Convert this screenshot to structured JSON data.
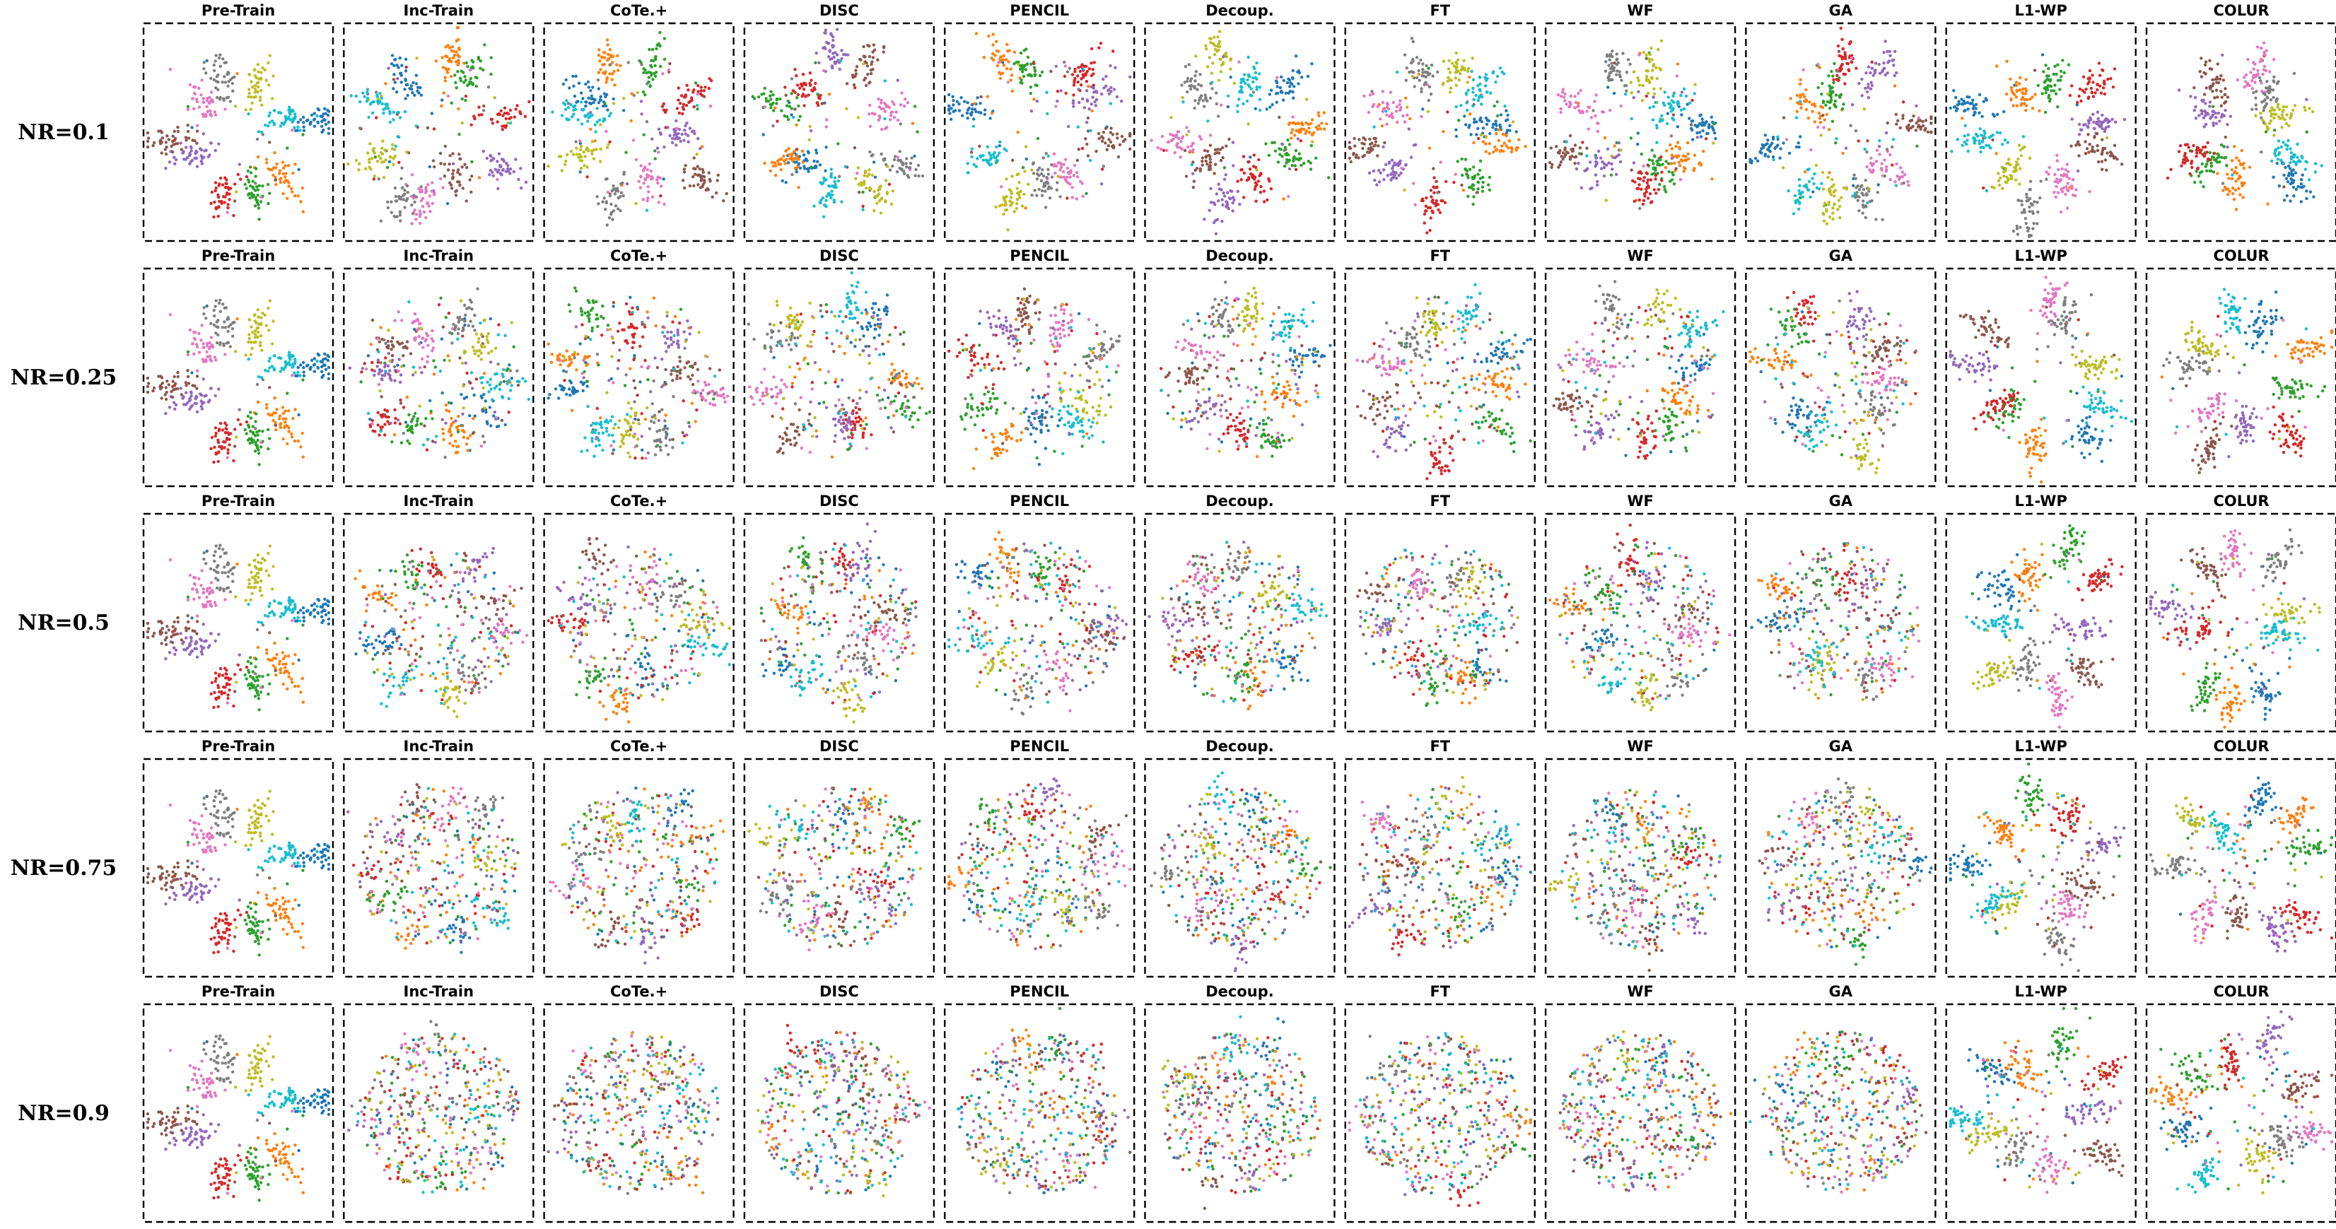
{
  "chart_data": {
    "type": "scatter",
    "description": "",
    "methods": [
      "Pre-Train",
      "Inc-Train",
      "CoTe.+",
      "DISC",
      "PENCIL",
      "Decoup.",
      "FT",
      "WF",
      "GA",
      "L1-WP",
      "COLUR"
    ],
    "row_labels": [
      "NR=0.1",
      "NR=0.25",
      "NR=0.5",
      "NR=0.75",
      "NR=0.9"
    ],
    "class_colors": [
      "#1f77b4",
      "#ff7f0e",
      "#2ca02c",
      "#d62728",
      "#9467bd",
      "#8c564b",
      "#e377c2",
      "#7f7f7f",
      "#bcbd22",
      "#17becf"
    ],
    "grid": false,
    "axes_visible": false,
    "frame_style": "dashed"
  }
}
